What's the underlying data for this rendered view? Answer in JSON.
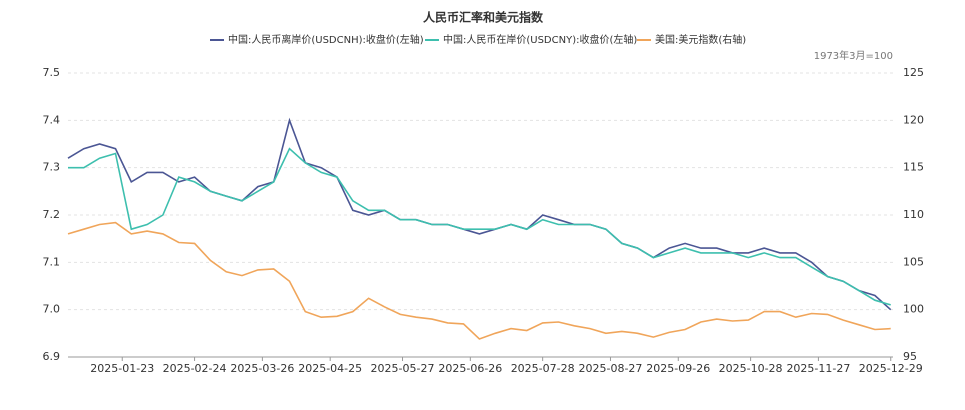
{
  "chart_data": {
    "type": "line",
    "title": "人民币汇率和美元指数",
    "note": "1973年3月=100",
    "x": [
      "2024-12-30",
      "2025-01-06",
      "2025-01-13",
      "2025-01-20",
      "2025-01-27",
      "2025-02-03",
      "2025-02-10",
      "2025-02-17",
      "2025-02-24",
      "2025-03-03",
      "2025-03-10",
      "2025-03-17",
      "2025-03-24",
      "2025-03-31",
      "2025-04-07",
      "2025-04-14",
      "2025-04-21",
      "2025-04-28",
      "2025-05-05",
      "2025-05-12",
      "2025-05-19",
      "2025-05-26",
      "2025-06-02",
      "2025-06-09",
      "2025-06-16",
      "2025-06-23",
      "2025-06-30",
      "2025-07-07",
      "2025-07-14",
      "2025-07-21",
      "2025-07-28",
      "2025-08-04",
      "2025-08-11",
      "2025-08-18",
      "2025-08-25",
      "2025-09-01",
      "2025-09-08",
      "2025-09-15",
      "2025-09-22",
      "2025-09-29",
      "2025-10-06",
      "2025-10-13",
      "2025-10-20",
      "2025-10-27",
      "2025-11-03",
      "2025-11-10",
      "2025-11-17",
      "2025-11-24",
      "2025-12-01",
      "2025-12-08",
      "2025-12-15",
      "2025-12-22",
      "2025-12-29"
    ],
    "xlim": [
      "2024-12-30",
      "2025-12-30"
    ],
    "xticks": [
      "2025-01-23",
      "2025-02-24",
      "2025-03-26",
      "2025-04-25",
      "2025-05-27",
      "2025-06-26",
      "2025-07-28",
      "2025-08-27",
      "2025-09-26",
      "2025-10-28",
      "2025-11-27",
      "2025-12-29"
    ],
    "ylim": [
      6.9,
      7.5
    ],
    "yticks": [
      6.9,
      {
        "value": 7,
        "label": "7.0"
      },
      7.1,
      7.2,
      7.3,
      7.4,
      7.5
    ],
    "y2lim": [
      95,
      125
    ],
    "y2ticks": [
      95,
      100,
      105,
      110,
      115,
      120,
      125
    ],
    "grid": true,
    "series": [
      {
        "name": "中国:人民币离岸价(USDCNH):收盘价(左轴)",
        "color": "#4b5694",
        "values": [
          7.32,
          7.34,
          7.35,
          7.34,
          7.27,
          7.29,
          7.29,
          7.27,
          7.28,
          7.25,
          7.24,
          7.23,
          7.26,
          7.27,
          7.4,
          7.31,
          7.3,
          7.28,
          7.21,
          7.2,
          7.21,
          7.19,
          7.19,
          7.18,
          7.18,
          7.17,
          7.16,
          7.17,
          7.18,
          7.17,
          7.2,
          7.19,
          7.18,
          7.18,
          7.17,
          7.14,
          7.13,
          7.11,
          7.13,
          7.14,
          7.13,
          7.13,
          7.12,
          7.12,
          7.13,
          7.12,
          7.12,
          7.1,
          7.07,
          7.06,
          7.04,
          7.03,
          7.0
        ]
      },
      {
        "name": "中国:人民币在岸价(USDCNY):收盘价(左轴)",
        "color": "#3dbfae",
        "values": [
          7.3,
          7.3,
          7.32,
          7.33,
          7.17,
          7.18,
          7.2,
          7.28,
          7.27,
          7.25,
          7.24,
          7.23,
          7.25,
          7.27,
          7.34,
          7.31,
          7.29,
          7.28,
          7.23,
          7.21,
          7.21,
          7.19,
          7.19,
          7.18,
          7.18,
          7.17,
          7.17,
          7.17,
          7.18,
          7.17,
          7.19,
          7.18,
          7.18,
          7.18,
          7.17,
          7.14,
          7.13,
          7.11,
          7.12,
          7.13,
          7.12,
          7.12,
          7.12,
          7.11,
          7.12,
          7.11,
          7.11,
          7.09,
          7.07,
          7.06,
          7.04,
          7.02,
          7.01
        ]
      },
      {
        "name": "美国:美元指数(右轴)",
        "color": "#f0a55a",
        "axis": "y2",
        "values": [
          108.0,
          108.5,
          109.0,
          109.2,
          108.0,
          108.3,
          108.0,
          107.1,
          107.0,
          105.2,
          104.0,
          103.6,
          104.2,
          104.3,
          103.0,
          99.8,
          99.2,
          99.3,
          99.8,
          101.2,
          100.3,
          99.5,
          99.2,
          99.0,
          98.6,
          98.5,
          96.9,
          97.5,
          98.0,
          97.8,
          98.6,
          98.7,
          98.3,
          98.0,
          97.5,
          97.7,
          97.5,
          97.1,
          97.6,
          97.9,
          98.7,
          99.0,
          98.8,
          98.9,
          99.8,
          99.8,
          99.2,
          99.6,
          99.5,
          98.9,
          98.4,
          97.9,
          98.0
        ]
      }
    ]
  }
}
